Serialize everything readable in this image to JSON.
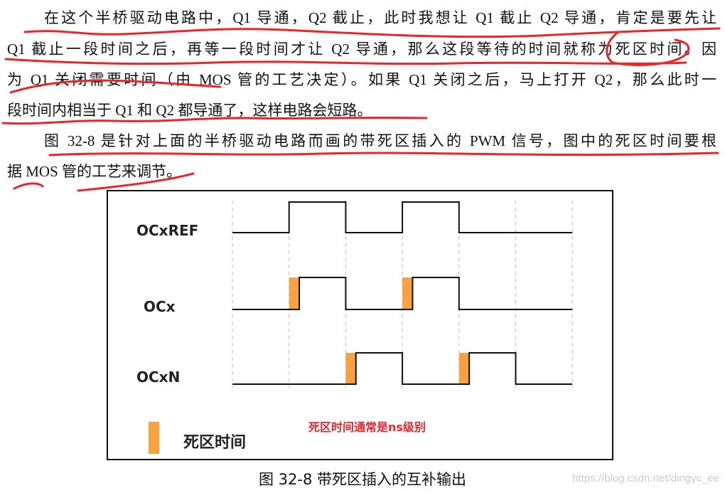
{
  "paragraphs": [
    {
      "lines": [
        "在这个半桥驱动电路中，Q1 导通，Q2 截止，此时我想让 Q1 截止 Q2 导通，肯定是要先让",
        "Q1 截止一段时间之后，再等一段时间才让 Q2 导通，那么这段等待的时间就称为死区时间。因",
        "为 Q1 关闭需要时间（由 MOS 管的工艺决定）。如果 Q1 关闭之后，马上打开 Q2，那么此时一",
        "段时间内相当于 Q1 和 Q2 都导通了，这样电路会短路。"
      ]
    },
    {
      "lines": [
        "图 32-8 是针对上面的半桥驱动电路而画的带死区插入的 PWM 信号，图中的死区时间要根",
        "据 MOS 管的工艺来调节。"
      ]
    }
  ],
  "figure": {
    "signals": [
      {
        "name": "OCxREF",
        "high_intervals": [
          [
            1,
            2
          ],
          [
            3,
            4
          ]
        ],
        "dead_time": []
      },
      {
        "name": "OCx",
        "high_intervals": [
          [
            1,
            2
          ],
          [
            3,
            4
          ]
        ],
        "dead_time": [
          [
            1,
            1.18
          ],
          [
            3,
            3.18
          ]
        ]
      },
      {
        "name": "OCxN",
        "high_intervals": [
          [
            2,
            3
          ],
          [
            4,
            5
          ]
        ],
        "dead_time": [
          [
            2,
            2.18
          ],
          [
            4,
            4.18
          ]
        ]
      }
    ],
    "time_divisions": 6,
    "legend_label": "死区时间",
    "note": "死区时间通常是ns级别",
    "caption": "图 32-8 带死区插入的互补输出",
    "colors": {
      "dead_time": "#f9a03f",
      "annotation": "#e8262b",
      "signal": "#111111"
    }
  },
  "watermark": "https://blog.csdn.net/dingyc_ee"
}
